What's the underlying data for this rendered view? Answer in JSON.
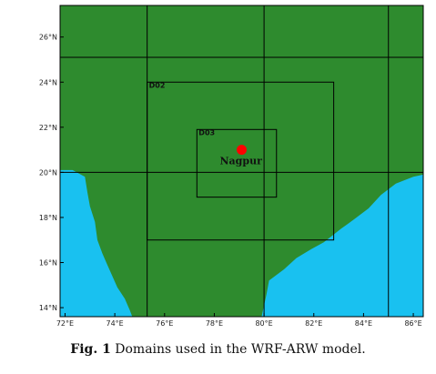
{
  "map": {
    "extent": {
      "lon_min": 71.8,
      "lon_max": 86.4,
      "lat_min": 13.6,
      "lat_max": 27.4
    },
    "colors": {
      "land": "#2e8b2e",
      "ocean": "#19c1f0",
      "grid": "#000000",
      "city": "#ff0000",
      "frame": "#000000"
    },
    "lon_ticks": [
      {
        "value": 72,
        "label": "72°E"
      },
      {
        "value": 74,
        "label": "74°E"
      },
      {
        "value": 76,
        "label": "76°E"
      },
      {
        "value": 78,
        "label": "78°E"
      },
      {
        "value": 80,
        "label": "80°E"
      },
      {
        "value": 82,
        "label": "82°E"
      },
      {
        "value": 84,
        "label": "84°E"
      },
      {
        "value": 86,
        "label": "86°E"
      }
    ],
    "lat_ticks": [
      {
        "value": 14,
        "label": "14°N"
      },
      {
        "value": 16,
        "label": "16°N"
      },
      {
        "value": 18,
        "label": "18°N"
      },
      {
        "value": 20,
        "label": "20°N"
      },
      {
        "value": 22,
        "label": "22°N"
      },
      {
        "value": 24,
        "label": "24°N"
      },
      {
        "value": 26,
        "label": "26°N"
      }
    ],
    "grid_lines": {
      "lon": [
        75.3,
        80,
        85
      ],
      "lat": [
        20,
        25.1
      ]
    },
    "domains": [
      {
        "label": "D02",
        "lon": [
          75.3,
          82.8
        ],
        "lat": [
          17,
          24
        ]
      },
      {
        "label": "D03",
        "lon": [
          77.3,
          80.5
        ],
        "lat": [
          18.9,
          21.9
        ]
      }
    ],
    "city": {
      "name": "Nagpur",
      "lon": 79.1,
      "lat": 21.0
    },
    "west_coast": [
      [
        71.8,
        20.1
      ],
      [
        72.3,
        20.1
      ],
      [
        72.8,
        19.8
      ],
      [
        72.9,
        19.1
      ],
      [
        73.0,
        18.5
      ],
      [
        73.2,
        17.8
      ],
      [
        73.3,
        17.0
      ],
      [
        73.5,
        16.4
      ],
      [
        73.7,
        15.9
      ],
      [
        73.9,
        15.4
      ],
      [
        74.1,
        14.9
      ],
      [
        74.4,
        14.4
      ],
      [
        74.6,
        13.9
      ],
      [
        74.7,
        13.6
      ]
    ],
    "east_coast": [
      [
        79.9,
        13.6
      ],
      [
        80.0,
        14.1
      ],
      [
        80.1,
        14.6
      ],
      [
        80.2,
        15.2
      ],
      [
        80.8,
        15.7
      ],
      [
        81.3,
        16.2
      ],
      [
        81.9,
        16.6
      ],
      [
        82.4,
        16.9
      ],
      [
        83.1,
        17.5
      ],
      [
        83.6,
        17.9
      ],
      [
        84.2,
        18.4
      ],
      [
        84.7,
        19.0
      ],
      [
        85.3,
        19.5
      ],
      [
        86.0,
        19.8
      ],
      [
        86.4,
        19.9
      ]
    ]
  },
  "caption": {
    "prefix": "Fig. 1",
    "text": " Domains used in the WRF-ARW model."
  }
}
